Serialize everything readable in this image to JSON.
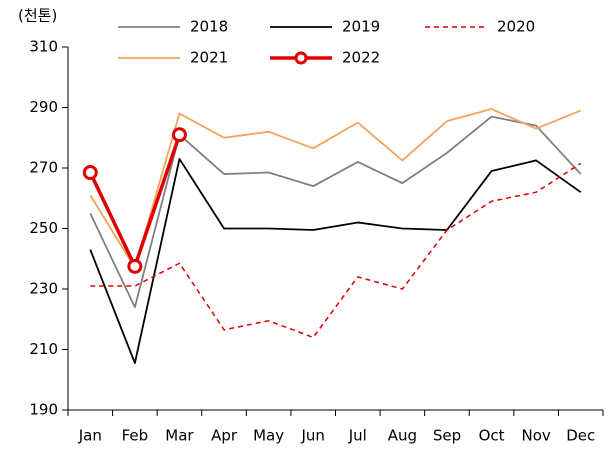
{
  "chart_data": {
    "type": "line",
    "y_label": "(천톤)",
    "categories": [
      "Jan",
      "Feb",
      "Mar",
      "Apr",
      "May",
      "Jun",
      "Jul",
      "Aug",
      "Sep",
      "Oct",
      "Nov",
      "Dec"
    ],
    "series": [
      {
        "name": "2018",
        "color": "#808080",
        "width": 1.8,
        "dash": false,
        "marker": null,
        "values": [
          255,
          224,
          281,
          268,
          268.5,
          264,
          272,
          265,
          275,
          287,
          284,
          268
        ]
      },
      {
        "name": "2019",
        "color": "#000000",
        "width": 1.8,
        "dash": false,
        "marker": null,
        "values": [
          243,
          205.5,
          273,
          250,
          250,
          249.5,
          252,
          250,
          249.5,
          269,
          272.5,
          262
        ]
      },
      {
        "name": "2020",
        "color": "#e00000",
        "width": 1.5,
        "dash": true,
        "marker": null,
        "values": [
          231,
          231,
          238.5,
          216.5,
          219.5,
          214,
          234,
          230,
          249.5,
          259,
          262,
          271.5
        ]
      },
      {
        "name": "2021",
        "color": "#f5a35a",
        "width": 1.8,
        "dash": false,
        "marker": null,
        "values": [
          261,
          237,
          288,
          280,
          282,
          276.5,
          285,
          272.5,
          285.5,
          289.5,
          283,
          289
        ]
      },
      {
        "name": "2022",
        "color": "#e00000",
        "width": 3.5,
        "dash": false,
        "marker": "circle",
        "values": [
          268.5,
          237.5,
          281,
          null,
          null,
          null,
          null,
          null,
          null,
          null,
          null,
          null
        ]
      }
    ],
    "ylim": [
      190,
      310
    ],
    "yticks": [
      190,
      210,
      230,
      250,
      270,
      290,
      310
    ],
    "grid": false
  }
}
